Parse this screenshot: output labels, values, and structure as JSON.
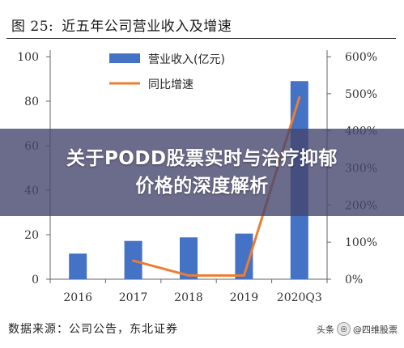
{
  "figure": {
    "label": "图 25:",
    "title": "近五年公司营业收入及增速",
    "source": "数据来源：公司公告，东北证券"
  },
  "overlay": {
    "line1": "关于PODD股票实时与治疗抑郁",
    "line2": "价格的深度解析"
  },
  "watermark": {
    "prefix": "头条",
    "handle": "@四维股票"
  },
  "colors": {
    "bar": "#4472c4",
    "line": "#ed7d31",
    "axis": "#666666"
  },
  "chart_data": {
    "type": "bar",
    "categories": [
      "2016",
      "2017",
      "2018",
      "2019",
      "2020Q3"
    ],
    "series": [
      {
        "name": "营业收入(亿元)",
        "type": "bar",
        "axis": "left",
        "values": [
          11.5,
          17.2,
          18.8,
          20.5,
          89.0
        ]
      },
      {
        "name": "同比增速",
        "type": "line",
        "axis": "right",
        "values": [
          null,
          0.5,
          0.1,
          0.1,
          4.9
        ]
      }
    ],
    "ylim": [
      0,
      100
    ],
    "yticks": [
      "0",
      "20",
      "40",
      "60",
      "80",
      "100"
    ],
    "y2lim": [
      0,
      6
    ],
    "y2ticks": [
      "0%",
      "100%",
      "200%",
      "300%",
      "400%",
      "500%",
      "600%"
    ],
    "legend": "top-center",
    "grid": false
  }
}
